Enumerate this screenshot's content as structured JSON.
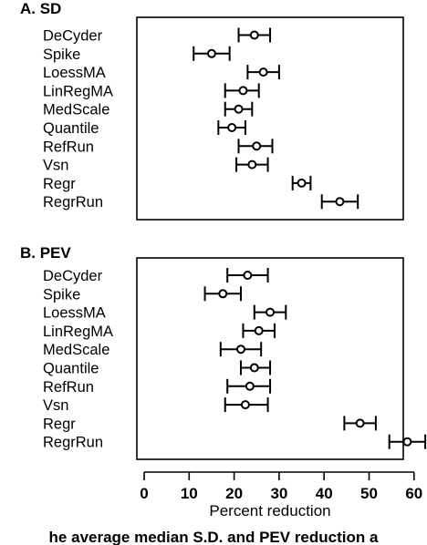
{
  "chart_data": [
    {
      "type": "forest",
      "title": "A. SD",
      "xlim": [
        0,
        65
      ],
      "categories": [
        "DeCyder",
        "Spike",
        "LoessMA",
        "LinRegMA",
        "MedScale",
        "Quantile",
        "RefRun",
        "Vsn",
        "Regr",
        "RegrRun"
      ],
      "estimates": [
        24.5,
        15.0,
        26.5,
        22.0,
        21.0,
        19.5,
        25.0,
        24.0,
        35.0,
        43.5
      ],
      "ci_low": [
        21.0,
        11.0,
        23.0,
        18.0,
        18.0,
        16.5,
        21.0,
        20.5,
        33.0,
        39.5
      ],
      "ci_high": [
        28.0,
        19.0,
        30.0,
        25.5,
        24.0,
        22.5,
        28.5,
        27.5,
        37.0,
        47.5
      ]
    },
    {
      "type": "forest",
      "title": "B. PEV",
      "xlim": [
        0,
        65
      ],
      "categories": [
        "DeCyder",
        "Spike",
        "LoessMA",
        "LinRegMA",
        "MedScale",
        "Quantile",
        "RefRun",
        "Vsn",
        "Regr",
        "RegrRun"
      ],
      "estimates": [
        23.0,
        17.5,
        28.0,
        25.5,
        21.5,
        24.5,
        23.5,
        22.5,
        48.0,
        58.5
      ],
      "ci_low": [
        18.5,
        13.5,
        24.5,
        22.0,
        17.0,
        21.5,
        18.5,
        18.0,
        44.5,
        54.5
      ],
      "ci_high": [
        27.5,
        21.5,
        31.5,
        29.0,
        26.0,
        28.0,
        28.0,
        27.5,
        51.5,
        62.5
      ],
      "x_ticks": [
        0,
        10,
        20,
        30,
        40,
        50,
        60
      ],
      "xlabel": "Percent reduction"
    }
  ],
  "caption": "he average median S.D. and PEV reduction a"
}
